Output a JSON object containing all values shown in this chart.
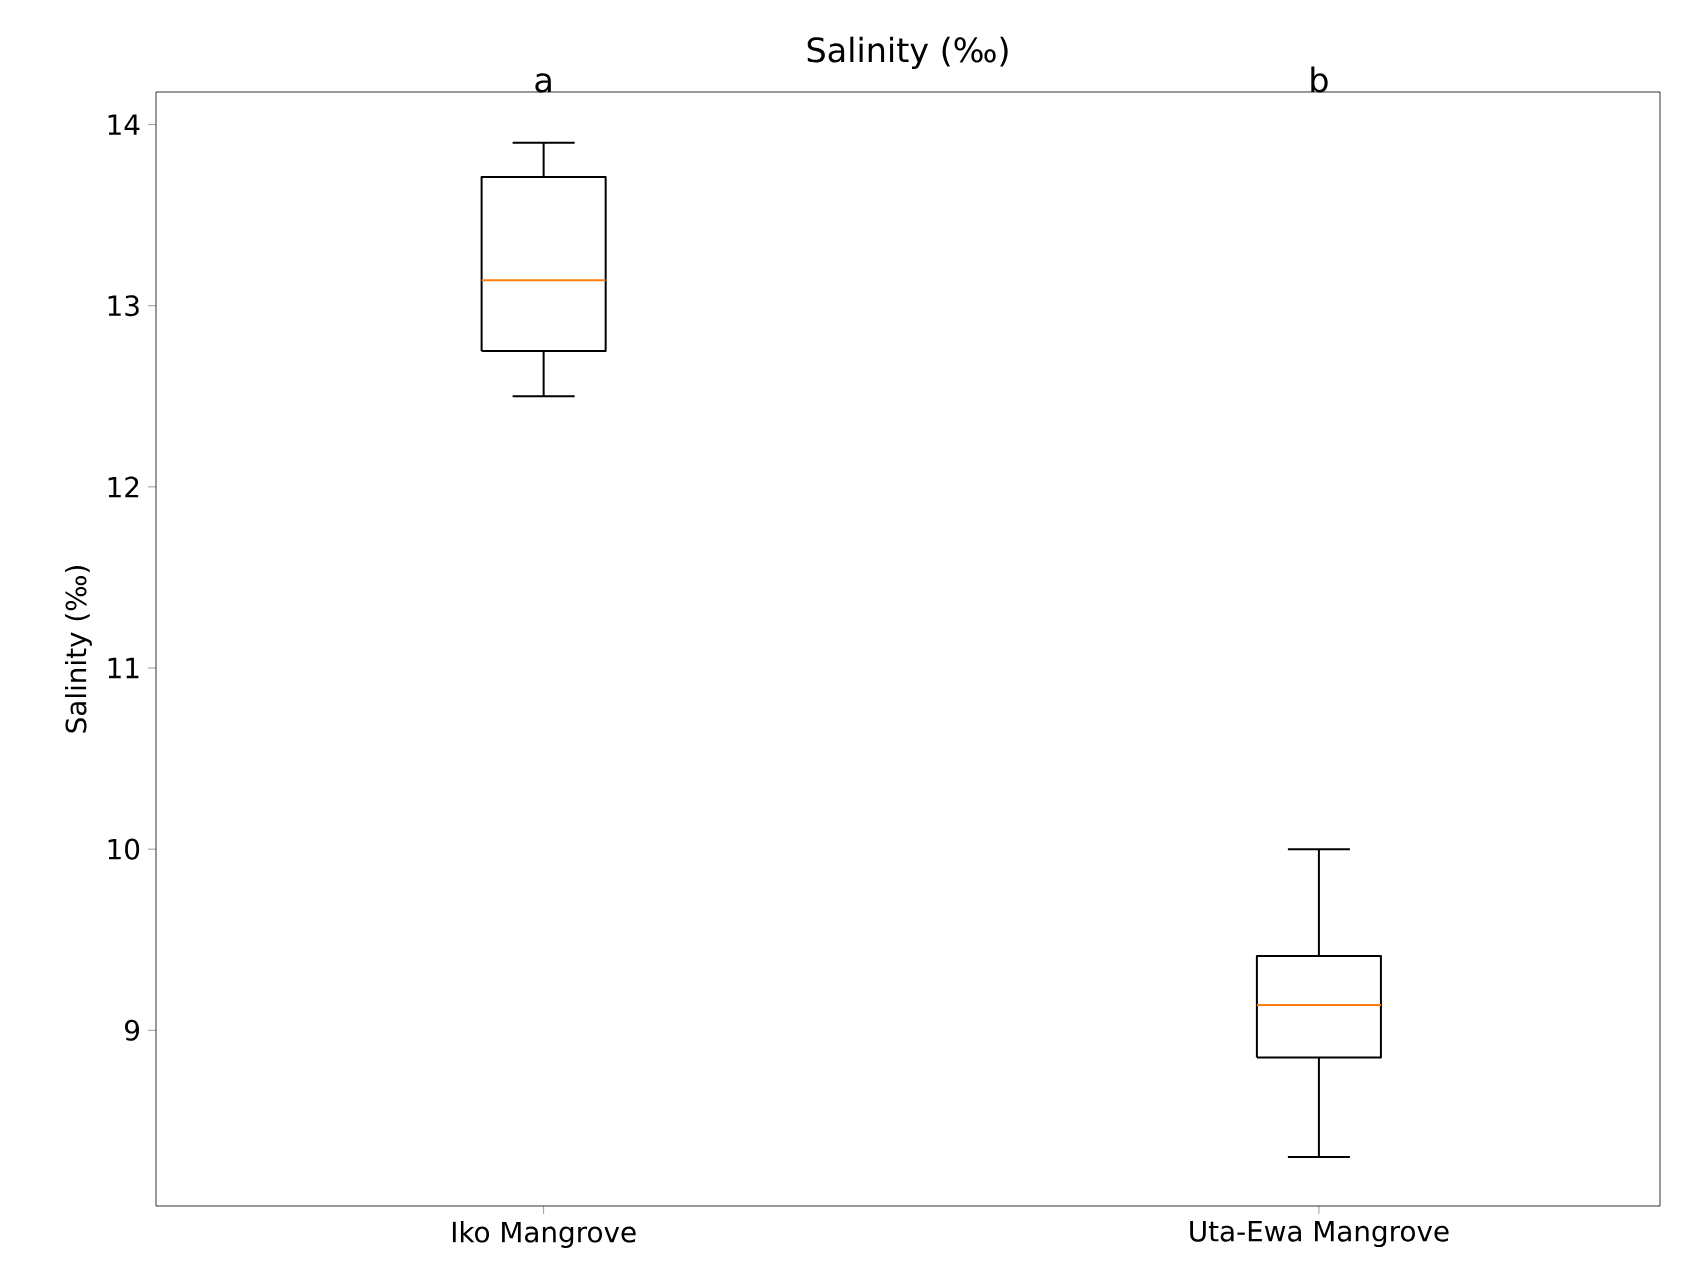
{
  "chart_data": {
    "type": "box",
    "title": "Salinity (‰)",
    "ylabel": "Salinity (‰)",
    "categories": [
      "Iko Mangrove",
      "Uta-Ewa Mangrove"
    ],
    "boxes": [
      {
        "low": 12.5,
        "q1": 12.75,
        "median": 13.14,
        "q3": 13.71,
        "high": 13.9
      },
      {
        "low": 8.3,
        "q1": 8.85,
        "median": 9.14,
        "q3": 9.41,
        "high": 10.0
      }
    ],
    "ylim": [
      8.03,
      14.18
    ],
    "yticks": [
      9,
      10,
      11,
      12,
      13,
      14
    ],
    "annotations": [
      "a",
      "b"
    ]
  }
}
